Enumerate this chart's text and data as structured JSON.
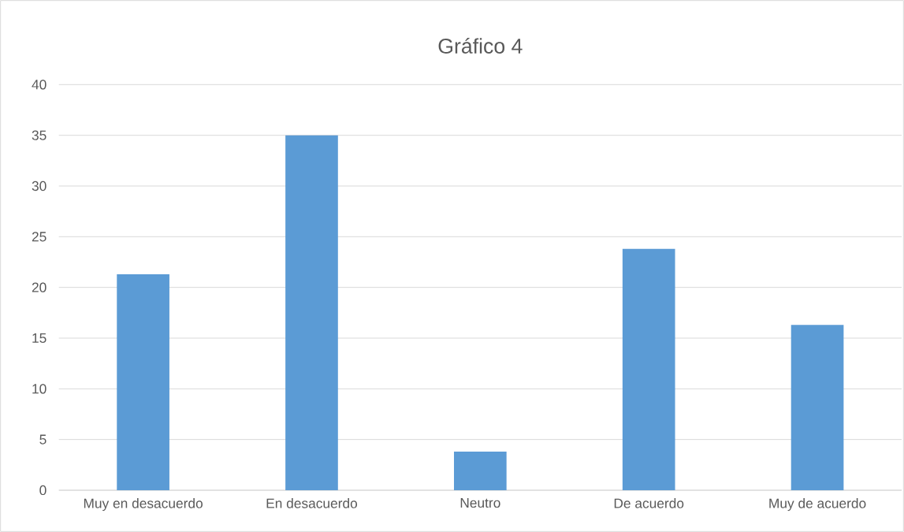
{
  "chart_data": {
    "type": "bar",
    "title": "Gráfico 4",
    "categories": [
      "Muy en desacuerdo",
      "En desacuerdo",
      "Neutro",
      "De acuerdo",
      "Muy de acuerdo"
    ],
    "values": [
      21.3,
      35,
      3.8,
      23.8,
      16.3
    ],
    "color": "#5b9bd5",
    "ylim": [
      0,
      40
    ],
    "yticks": [
      0,
      5,
      10,
      15,
      20,
      25,
      30,
      35,
      40
    ],
    "grid": "y"
  }
}
